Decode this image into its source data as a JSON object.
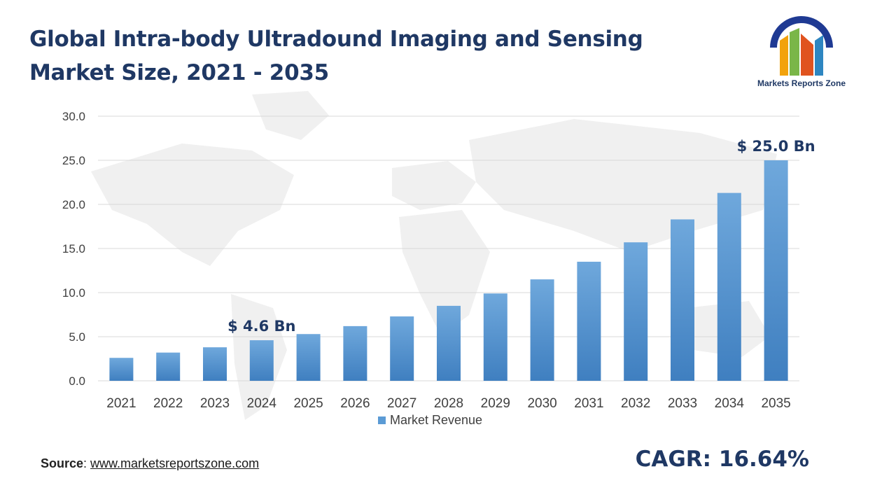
{
  "title": "Global Intra-body Ultradound Imaging and Sensing Market Size, 2021 - 2035",
  "logo": {
    "text": "Markets Reports Zone"
  },
  "source": {
    "label": "Source",
    "separator": ": ",
    "url_text": "www.marketsreportszone.com"
  },
  "cagr": "CAGR: 16.64%",
  "colors": {
    "bar": "#5b9bd5",
    "bar_dark": "#3f7fc0",
    "title": "#1f3864",
    "grid": "#d9d9d9"
  },
  "chart_data": {
    "type": "bar",
    "categories": [
      "2021",
      "2022",
      "2023",
      "2024",
      "2025",
      "2026",
      "2027",
      "2028",
      "2029",
      "2030",
      "2031",
      "2032",
      "2033",
      "2034",
      "2035"
    ],
    "series": [
      {
        "name": "Market Revenue",
        "values": [
          2.6,
          3.2,
          3.8,
          4.6,
          5.3,
          6.2,
          7.3,
          8.5,
          9.9,
          11.5,
          13.5,
          15.7,
          18.3,
          21.3,
          25.0
        ]
      }
    ],
    "ylim": [
      0,
      30
    ],
    "yticks": [
      "0.0",
      "5.0",
      "10.0",
      "15.0",
      "20.0",
      "25.0",
      "30.0"
    ],
    "grid": true,
    "legend": "bottom-center",
    "annotations": [
      {
        "category": "2024",
        "text": "$ 4.6 Bn"
      },
      {
        "category": "2035",
        "text": "$ 25.0 Bn"
      }
    ]
  }
}
